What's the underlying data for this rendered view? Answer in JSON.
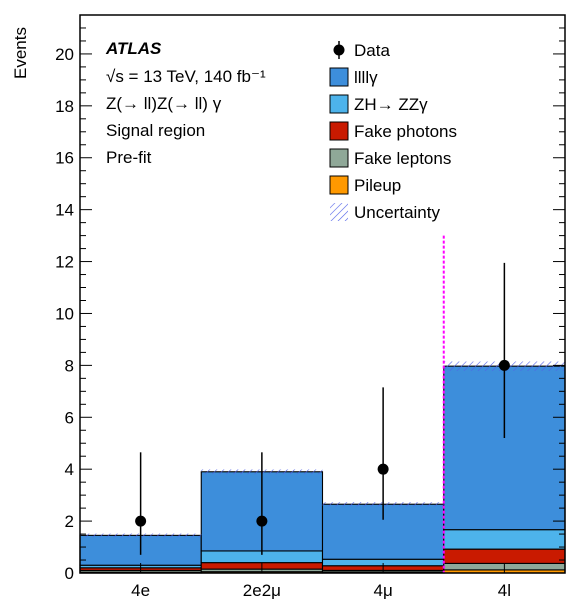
{
  "chart_data": {
    "type": "bar",
    "stacked": true,
    "categories": [
      "4e",
      "2e2μ",
      "4μ",
      "4l"
    ],
    "ylabel": "Events",
    "xlabel": "",
    "ylim": [
      0,
      21.5
    ],
    "yticks": [
      0,
      2,
      4,
      6,
      8,
      10,
      12,
      14,
      16,
      18,
      20
    ],
    "series": [
      {
        "name": "Pileup",
        "color": "#ff9900",
        "values": [
          0.03,
          0.05,
          0.04,
          0.12
        ]
      },
      {
        "name": "Fake leptons",
        "color": "#8fa898",
        "values": [
          0.07,
          0.1,
          0.06,
          0.25
        ]
      },
      {
        "name": "Fake photons",
        "color": "#c91a00",
        "values": [
          0.1,
          0.25,
          0.18,
          0.55
        ]
      },
      {
        "name": "ZH→ ZZγ",
        "color": "#4db3eb",
        "values": [
          0.1,
          0.45,
          0.25,
          0.75
        ]
      },
      {
        "name": "llllγ",
        "color": "#3d8edb",
        "values": [
          1.15,
          3.05,
          2.12,
          6.3
        ]
      }
    ],
    "totals": [
      1.45,
      3.9,
      2.65,
      7.97
    ],
    "uncertainty": {
      "up": [
        1.52,
        3.99,
        2.73,
        8.15
      ],
      "down": [
        1.38,
        3.81,
        2.57,
        7.79
      ]
    },
    "data": {
      "name": "Data",
      "values": [
        2,
        2,
        4,
        8
      ],
      "err_up": [
        4.65,
        4.65,
        7.15,
        11.95
      ],
      "err_down": [
        0.7,
        0.7,
        2.05,
        5.2
      ]
    },
    "annotations": {
      "experiment": "ATLAS",
      "lines": [
        "√s = 13 TeV, 140 fb⁻¹",
        "Z(→ ll)Z(→ ll) γ",
        "Signal region",
        "Pre-fit"
      ]
    },
    "legend": {
      "placement": "top-right",
      "entries": [
        {
          "label": "Data",
          "kind": "marker",
          "color": "#000000"
        },
        {
          "label": "llllγ",
          "kind": "box",
          "color": "#3d8edb"
        },
        {
          "label": "ZH→ ZZγ",
          "kind": "box",
          "color": "#4db3eb"
        },
        {
          "label": "Fake photons",
          "kind": "box",
          "color": "#c91a00"
        },
        {
          "label": "Fake leptons",
          "kind": "box",
          "color": "#8fa898"
        },
        {
          "label": "Pileup",
          "kind": "box",
          "color": "#ff9900"
        },
        {
          "label": "Uncertainty",
          "kind": "hatch",
          "color": "#5060e8"
        }
      ]
    },
    "separator_after_category": 2,
    "separator_color": "#ff00ff",
    "grid": false
  }
}
